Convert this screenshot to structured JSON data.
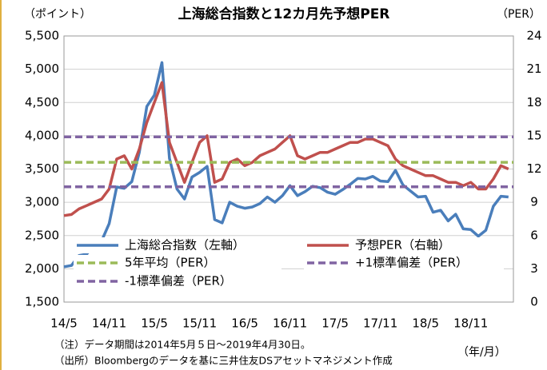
{
  "chart_data": {
    "type": "line",
    "title": "上海総合指数と12カ月先予想PER",
    "y_label": "（ポイント）",
    "y2_label": "（PER）",
    "x_label": "（年/月）",
    "notes": [
      "（注）データ期間は2014年5月５日～2019年4月30日。",
      "（出所）Bloombergのデータを基に三井住友DSアセットマネジメント作成"
    ],
    "categories": [
      "14/5",
      null,
      null,
      null,
      null,
      null,
      "14/11",
      null,
      null,
      null,
      null,
      null,
      "15/5",
      null,
      null,
      null,
      null,
      null,
      "15/11",
      null,
      null,
      null,
      null,
      null,
      "16/5",
      null,
      null,
      null,
      null,
      null,
      "16/11",
      null,
      null,
      null,
      null,
      null,
      "17/5",
      null,
      null,
      null,
      null,
      null,
      "17/11",
      null,
      null,
      null,
      null,
      null,
      "18/5",
      null,
      null,
      null,
      null,
      null,
      "18/11",
      null,
      null,
      null,
      null,
      null
    ],
    "series": [
      {
        "name": "上海総合指数（左軸）",
        "color": "#4a7ebb",
        "axis": "y",
        "values": [
          2030,
          2050,
          2200,
          2220,
          2360,
          2420,
          2680,
          3230,
          3210,
          3310,
          3750,
          4440,
          4610,
          5100,
          3660,
          3200,
          3050,
          3380,
          3450,
          3540,
          2740,
          2690,
          3000,
          2940,
          2910,
          2930,
          2980,
          3080,
          3000,
          3100,
          3250,
          3100,
          3160,
          3240,
          3220,
          3150,
          3120,
          3190,
          3270,
          3360,
          3350,
          3390,
          3320,
          3310,
          3480,
          3260,
          3170,
          3080,
          3090,
          2850,
          2880,
          2720,
          2820,
          2600,
          2590,
          2490,
          2580,
          2940,
          3090,
          3080
        ]
      },
      {
        "name": "予想PER（右軸）",
        "color": "#c0504d",
        "axis": "y2",
        "values": [
          7.8,
          7.9,
          8.4,
          8.7,
          9.0,
          9.3,
          10.2,
          12.9,
          13.2,
          12.0,
          13.8,
          16.2,
          18.0,
          19.8,
          14.4,
          12.6,
          10.8,
          12.6,
          14.4,
          15.0,
          10.8,
          11.1,
          12.6,
          12.9,
          12.3,
          12.6,
          13.2,
          13.5,
          13.8,
          14.4,
          15.0,
          13.2,
          12.9,
          13.2,
          13.5,
          13.5,
          13.8,
          14.1,
          14.4,
          14.4,
          14.7,
          14.7,
          14.4,
          14.1,
          12.9,
          12.3,
          12.0,
          11.7,
          11.4,
          11.4,
          11.1,
          10.8,
          10.8,
          10.5,
          10.8,
          10.2,
          10.2,
          11.1,
          12.3,
          12.0
        ]
      },
      {
        "name": "5年平均（PER）",
        "color": "#9bbb59",
        "axis": "y2",
        "style": "dashed",
        "value": 12.6
      },
      {
        "name": "+1標準偏差（PER）",
        "color": "#8064a2",
        "axis": "y2",
        "style": "dashed",
        "value": 14.9
      },
      {
        "name": "-1標準偏差（PER）",
        "color": "#8064a2",
        "axis": "y2",
        "style": "dashed",
        "value": 10.4
      }
    ],
    "ylim": [
      1500,
      5500
    ],
    "yticks": [
      {
        "value": 1500,
        "label": "1,500"
      },
      {
        "value": 2000,
        "label": "2,000"
      },
      {
        "value": 2500,
        "label": "2,500"
      },
      {
        "value": 3000,
        "label": "3,000"
      },
      {
        "value": 3500,
        "label": "3,500"
      },
      {
        "value": 4000,
        "label": "4,000"
      },
      {
        "value": 4500,
        "label": "4,500"
      },
      {
        "value": 5000,
        "label": "5,000"
      },
      {
        "value": 5500,
        "label": "5,500"
      }
    ],
    "y2lim": [
      0,
      24
    ],
    "y2ticks": [
      0,
      3,
      6,
      9,
      12,
      15,
      18,
      21,
      24
    ],
    "grid": true
  }
}
